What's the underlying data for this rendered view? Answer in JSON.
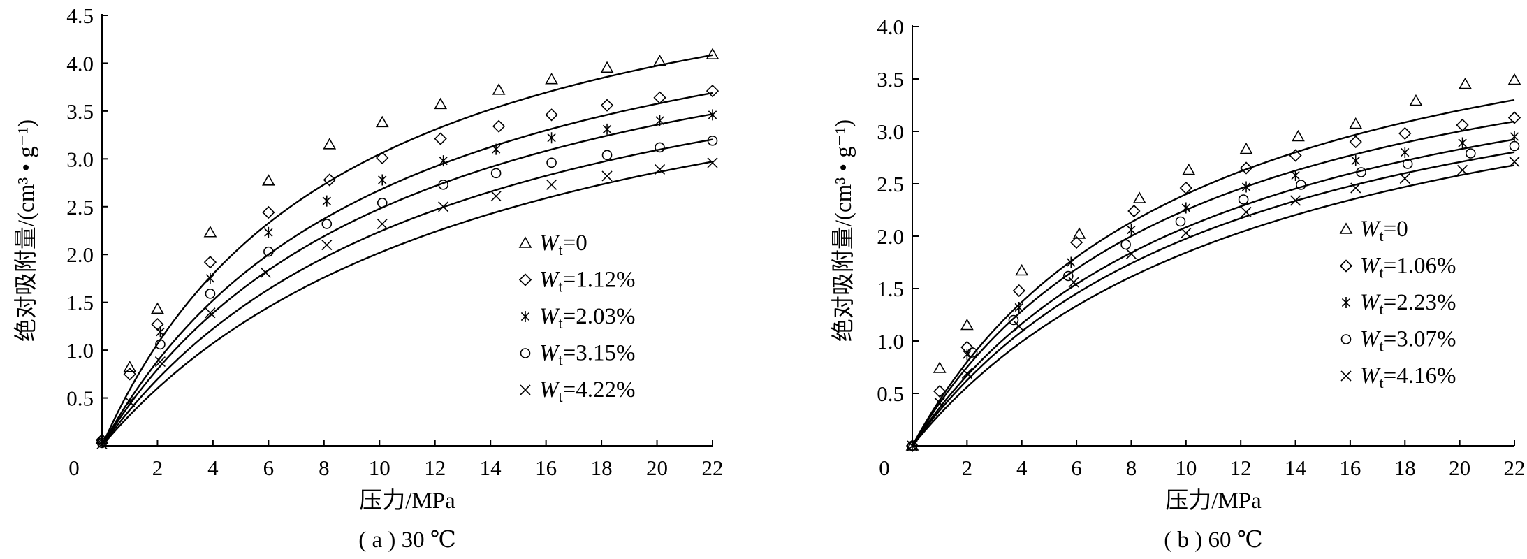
{
  "chart_data": [
    {
      "type": "scatter",
      "caption": "( a ) 30 ℃",
      "xlabel": "压力/MPa",
      "ylabel": "绝对吸附量/(cm³ • g⁻¹)",
      "xlim": [
        0,
        22
      ],
      "ylim": [
        0,
        4.5
      ],
      "origin_label": "0",
      "xticks": [
        2,
        4,
        6,
        8,
        10,
        12,
        14,
        16,
        18,
        20,
        22
      ],
      "yticks": [
        0.5,
        1.0,
        1.5,
        2.0,
        2.5,
        3.0,
        3.5,
        4.0,
        4.5
      ],
      "ytick_labels": [
        "0.5",
        "1.0",
        "1.5",
        "2.0",
        "2.5",
        "3.0",
        "3.5",
        "4.0",
        "4.5"
      ],
      "legend_position": "right",
      "series": [
        {
          "name": "Wt=0",
          "symbol": "triangle",
          "x": [
            0,
            1.0,
            2.0,
            3.9,
            6.0,
            8.2,
            10.1,
            12.2,
            14.3,
            16.2,
            18.2,
            20.1,
            22.0
          ],
          "y": [
            0.07,
            0.82,
            1.43,
            2.23,
            2.77,
            3.15,
            3.38,
            3.57,
            3.72,
            3.83,
            3.95,
            4.02,
            4.09
          ],
          "fit": {
            "a": 5.7,
            "b": 0.115
          }
        },
        {
          "name": "Wt=1.12%",
          "symbol": "diamond",
          "x": [
            0,
            1.0,
            2.0,
            3.9,
            6.0,
            8.2,
            10.1,
            12.2,
            14.3,
            16.2,
            18.2,
            20.1,
            22.0
          ],
          "y": [
            0.06,
            0.75,
            1.27,
            1.92,
            2.44,
            2.78,
            3.01,
            3.21,
            3.34,
            3.46,
            3.56,
            3.64,
            3.71
          ],
          "fit": {
            "a": 5.4,
            "b": 0.098
          }
        },
        {
          "name": "Wt=2.03%",
          "symbol": "asterisk",
          "x": [
            0,
            2.1,
            3.9,
            6.0,
            8.1,
            10.1,
            12.3,
            14.2,
            16.2,
            18.2,
            20.1,
            22.0
          ],
          "y": [
            0.04,
            1.19,
            1.75,
            2.23,
            2.56,
            2.78,
            2.98,
            3.1,
            3.22,
            3.31,
            3.4,
            3.46
          ],
          "fit": {
            "a": 5.2,
            "b": 0.091
          }
        },
        {
          "name": "Wt=3.15%",
          "symbol": "circle",
          "x": [
            0,
            2.1,
            3.9,
            6.0,
            8.1,
            10.1,
            12.3,
            14.2,
            16.2,
            18.2,
            20.1,
            22.0
          ],
          "y": [
            0.03,
            1.06,
            1.59,
            2.03,
            2.32,
            2.54,
            2.73,
            2.85,
            2.96,
            3.04,
            3.12,
            3.19
          ],
          "fit": {
            "a": 5.0,
            "b": 0.081
          }
        },
        {
          "name": "Wt=4.22%",
          "symbol": "cross",
          "x": [
            0,
            1.0,
            2.1,
            3.9,
            5.9,
            8.1,
            10.1,
            12.3,
            14.2,
            16.2,
            18.2,
            20.1,
            22.0
          ],
          "y": [
            0.02,
            0.46,
            0.88,
            1.39,
            1.81,
            2.1,
            2.32,
            2.5,
            2.61,
            2.73,
            2.82,
            2.89,
            2.96
          ],
          "fit": {
            "a": 4.9,
            "b": 0.07
          }
        }
      ]
    },
    {
      "type": "scatter",
      "caption": "( b ) 60 ℃",
      "xlabel": "压力/MPa",
      "ylabel": "绝对吸附量/(cm³ • g⁻¹)",
      "xlim": [
        0,
        22
      ],
      "ylim": [
        0,
        4.0
      ],
      "origin_label": "0",
      "xticks": [
        2,
        4,
        6,
        8,
        10,
        12,
        14,
        16,
        18,
        20,
        22
      ],
      "yticks": [
        0.5,
        1.0,
        1.5,
        2.0,
        2.5,
        3.0,
        3.5,
        4.0
      ],
      "ytick_labels": [
        "0.5",
        "1.0",
        "1.5",
        "2.0",
        "2.5",
        "3.0",
        "3.5",
        "4.0"
      ],
      "legend_position": "right",
      "series": [
        {
          "name": "Wt=0",
          "symbol": "triangle",
          "x": [
            0,
            1.0,
            2.0,
            4.0,
            6.1,
            8.3,
            10.1,
            12.2,
            14.1,
            16.2,
            18.4,
            20.2,
            22.0
          ],
          "y": [
            0.0,
            0.74,
            1.15,
            1.67,
            2.02,
            2.36,
            2.63,
            2.83,
            2.95,
            3.07,
            3.29,
            3.45,
            3.49
          ],
          "fit": {
            "a": 4.8,
            "b": 0.1
          }
        },
        {
          "name": "Wt=1.06%",
          "symbol": "diamond",
          "x": [
            0,
            1.0,
            2.0,
            3.9,
            6.0,
            8.1,
            10.0,
            12.2,
            14.0,
            16.2,
            18.0,
            20.1,
            22.0
          ],
          "y": [
            0.0,
            0.52,
            0.94,
            1.48,
            1.94,
            2.24,
            2.46,
            2.65,
            2.77,
            2.9,
            2.98,
            3.06,
            3.13
          ],
          "fit": {
            "a": 4.5,
            "b": 0.1
          }
        },
        {
          "name": "Wt=2.23%",
          "symbol": "asterisk",
          "x": [
            0,
            2.0,
            3.9,
            5.8,
            8.0,
            10.0,
            12.2,
            14.0,
            16.2,
            18.0,
            20.1,
            22.0
          ],
          "y": [
            0.0,
            0.87,
            1.32,
            1.75,
            2.06,
            2.27,
            2.47,
            2.58,
            2.72,
            2.8,
            2.89,
            2.95
          ],
          "fit": {
            "a": 4.4,
            "b": 0.09
          }
        },
        {
          "name": "Wt=3.07%",
          "symbol": "circle",
          "x": [
            0,
            2.2,
            3.7,
            5.7,
            7.8,
            9.8,
            12.1,
            14.2,
            16.4,
            18.1,
            20.4,
            22.0
          ],
          "y": [
            0.0,
            0.89,
            1.2,
            1.62,
            1.92,
            2.14,
            2.35,
            2.49,
            2.61,
            2.69,
            2.79,
            2.86
          ],
          "fit": {
            "a": 4.3,
            "b": 0.085
          }
        },
        {
          "name": "Wt=4.16%",
          "symbol": "cross",
          "x": [
            0,
            1.0,
            2.0,
            3.9,
            5.9,
            8.0,
            10.0,
            12.2,
            14.0,
            16.2,
            18.0,
            20.1,
            22.0
          ],
          "y": [
            0.0,
            0.41,
            0.69,
            1.14,
            1.56,
            1.83,
            2.03,
            2.23,
            2.34,
            2.46,
            2.55,
            2.63,
            2.71
          ],
          "fit": {
            "a": 4.3,
            "b": 0.075
          }
        }
      ]
    }
  ]
}
